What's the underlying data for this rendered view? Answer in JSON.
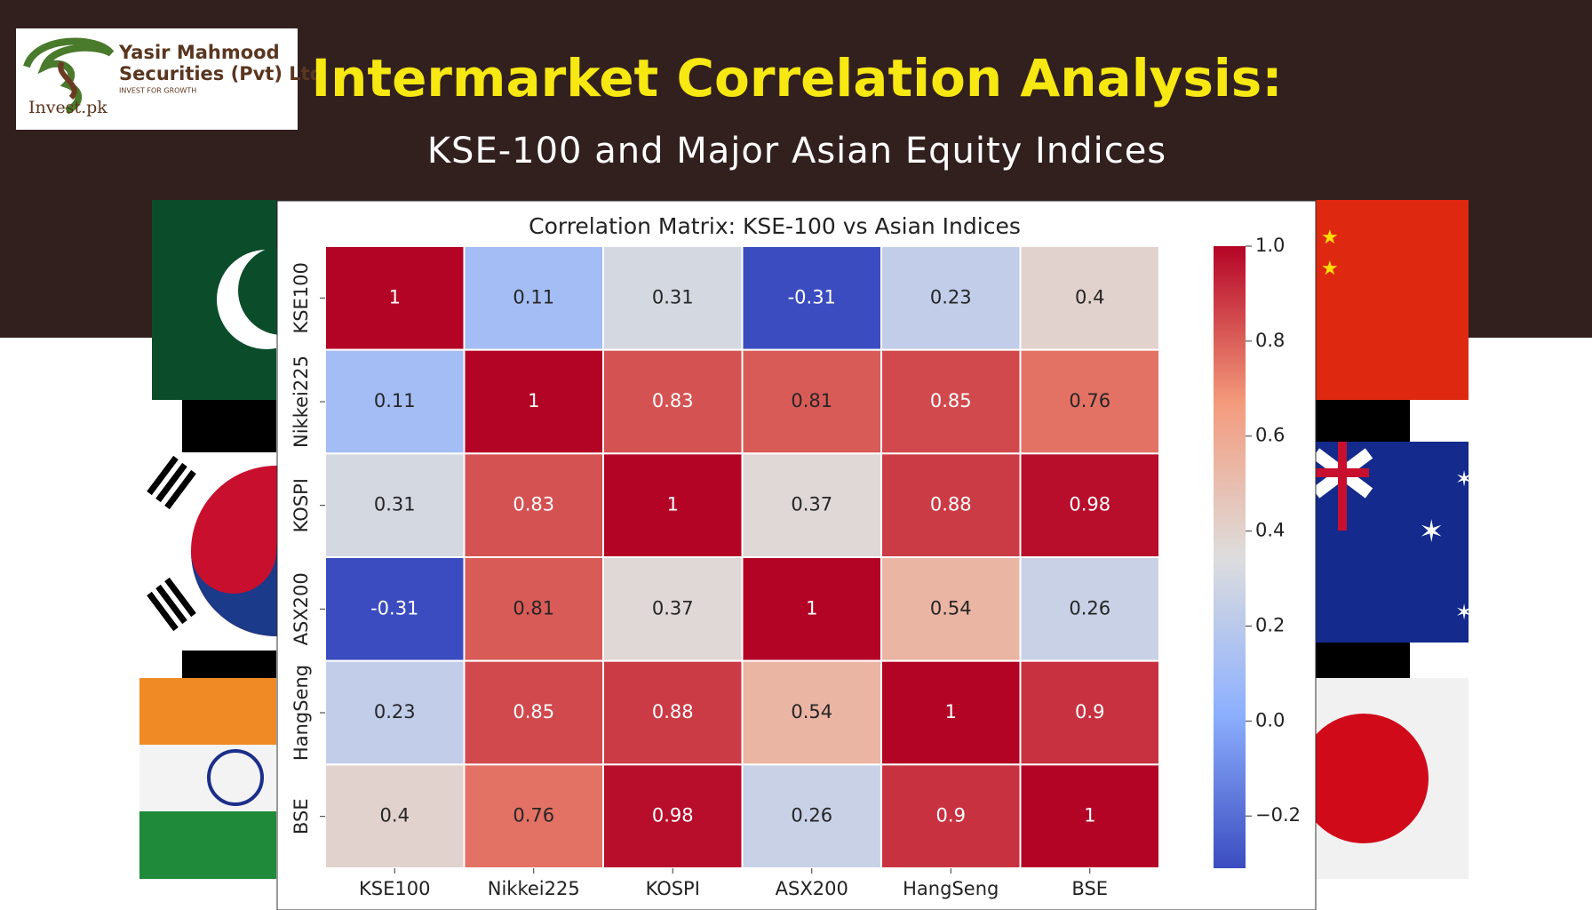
{
  "header": {
    "logo_name": "Yasir Mahmood",
    "logo_company": "Securities (Pvt) Ltd",
    "logo_tagline": "INVEST FOR GROWTH",
    "logo_site": "Invest.pk",
    "title": "Intermarket Correlation Analysis:",
    "subtitle": "KSE-100 and Major Asian Equity Indices"
  },
  "chart_data": {
    "type": "heatmap",
    "title": "Correlation Matrix: KSE-100 vs Asian Indices",
    "x_categories": [
      "KSE100",
      "Nikkei225",
      "KOSPI",
      "ASX200",
      "HangSeng",
      "BSE"
    ],
    "y_categories": [
      "KSE100",
      "Nikkei225",
      "KOSPI",
      "ASX200",
      "HangSeng",
      "BSE"
    ],
    "values": [
      [
        1,
        0.11,
        0.31,
        -0.31,
        0.23,
        0.4
      ],
      [
        0.11,
        1,
        0.83,
        0.81,
        0.85,
        0.76
      ],
      [
        0.31,
        0.83,
        1,
        0.37,
        0.88,
        0.98
      ],
      [
        -0.31,
        0.81,
        0.37,
        1,
        0.54,
        0.26
      ],
      [
        0.23,
        0.85,
        0.88,
        0.54,
        1,
        0.9
      ],
      [
        0.4,
        0.76,
        0.98,
        0.26,
        0.9,
        1
      ]
    ],
    "colormap": "coolwarm",
    "clim": [
      -0.31,
      1.0
    ],
    "cticks": [
      {
        "value": -0.2,
        "label": "−0.2"
      },
      {
        "value": 0.0,
        "label": "0.0"
      },
      0.2,
      0.4,
      0.6,
      0.8,
      {
        "value": 1.0,
        "label": "1.0"
      }
    ]
  }
}
